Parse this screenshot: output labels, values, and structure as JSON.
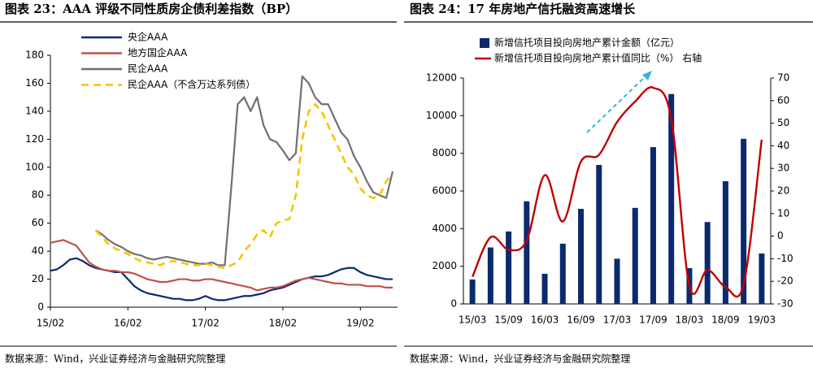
{
  "chart_data": [
    {
      "type": "line",
      "title": "图表 23：AAA 评级不同性质房企债利差指数（BP）",
      "source": "数据来源：Wind，兴业证券经济与金融研究院整理",
      "x": [
        "15/02",
        "15/03",
        "15/04",
        "15/05",
        "15/06",
        "15/07",
        "15/08",
        "15/09",
        "15/10",
        "15/11",
        "15/12",
        "16/01",
        "16/02",
        "16/03",
        "16/04",
        "16/05",
        "16/06",
        "16/07",
        "16/08",
        "16/09",
        "16/10",
        "16/11",
        "16/12",
        "17/01",
        "17/02",
        "17/03",
        "17/04",
        "17/05",
        "17/06",
        "17/07",
        "17/08",
        "17/09",
        "17/10",
        "17/11",
        "17/12",
        "18/01",
        "18/02",
        "18/03",
        "18/04",
        "18/05",
        "18/06",
        "18/07",
        "18/08",
        "18/09",
        "18/10",
        "18/11",
        "18/12",
        "19/01",
        "19/02",
        "19/03",
        "19/04",
        "19/05",
        "19/06",
        "19/07"
      ],
      "xticks": [
        "15/02",
        "16/02",
        "17/02",
        "18/02",
        "19/02"
      ],
      "ylim": [
        0,
        180
      ],
      "yticks": [
        0,
        20,
        40,
        60,
        80,
        100,
        120,
        140,
        160,
        180
      ],
      "legend": "upper left",
      "series": [
        {
          "name": "央企AAA",
          "color": "#0b2a6e",
          "style": "solid",
          "values": [
            26,
            27,
            30,
            34,
            35,
            33,
            30,
            28,
            27,
            26,
            25,
            25,
            20,
            15,
            12,
            10,
            9,
            8,
            7,
            6,
            6,
            5,
            5,
            6,
            8,
            6,
            5,
            5,
            6,
            7,
            8,
            8,
            9,
            10,
            12,
            13,
            14,
            16,
            18,
            20,
            21,
            22,
            22,
            23,
            25,
            27,
            28,
            28,
            25,
            23,
            22,
            21,
            20,
            20
          ]
        },
        {
          "name": "地方国企AAA",
          "color": "#c0504d",
          "style": "solid",
          "values": [
            46,
            47,
            48,
            46,
            44,
            38,
            32,
            29,
            27,
            26,
            26,
            25,
            25,
            24,
            22,
            20,
            19,
            18,
            18,
            19,
            20,
            20,
            19,
            19,
            20,
            20,
            19,
            18,
            17,
            16,
            15,
            14,
            12,
            13,
            14,
            14,
            15,
            17,
            19,
            20,
            21,
            20,
            19,
            18,
            17,
            17,
            16,
            16,
            16,
            15,
            15,
            15,
            14,
            14
          ]
        },
        {
          "name": "民企AAA",
          "color": "#707070",
          "style": "solid",
          "values": [
            null,
            null,
            null,
            null,
            null,
            null,
            null,
            55,
            52,
            48,
            45,
            43,
            40,
            38,
            37,
            35,
            34,
            35,
            36,
            35,
            34,
            33,
            32,
            31,
            31,
            32,
            30,
            30,
            85,
            145,
            150,
            140,
            150,
            130,
            120,
            118,
            112,
            105,
            110,
            165,
            160,
            150,
            145,
            145,
            135,
            125,
            120,
            108,
            100,
            90,
            82,
            80,
            78,
            97
          ]
        },
        {
          "name": "民企AAA（不含万达系列债）",
          "color": "#f5c400",
          "style": "dashed",
          "values": [
            null,
            null,
            null,
            null,
            null,
            null,
            null,
            55,
            50,
            45,
            42,
            40,
            38,
            35,
            33,
            32,
            31,
            30,
            32,
            33,
            32,
            31,
            30,
            30,
            31,
            30,
            29,
            28,
            30,
            32,
            40,
            45,
            52,
            55,
            50,
            60,
            62,
            63,
            80,
            120,
            140,
            145,
            140,
            130,
            120,
            110,
            100,
            95,
            85,
            80,
            78,
            80,
            90,
            95
          ]
        }
      ]
    },
    {
      "type": "combo",
      "title": "图表 24：17 年房地产信托融资高速增长",
      "source": "数据来源：Wind，兴业证券经济与金融研究院整理",
      "categories": [
        "15/03",
        null,
        "15/09",
        null,
        "16/03",
        null,
        "16/09",
        null,
        "17/03",
        null,
        "17/09",
        null,
        "18/03",
        null,
        "18/09",
        null,
        "19/03"
      ],
      "ylim": [
        0,
        12000
      ],
      "yticks": [
        0,
        2000,
        4000,
        6000,
        8000,
        10000,
        12000
      ],
      "y2lim": [
        -30,
        70
      ],
      "y2ticks": [
        -30,
        -20,
        -10,
        0,
        10,
        20,
        30,
        40,
        50,
        60,
        70
      ],
      "legend": "upper left",
      "series": [
        {
          "name": "新增信托项目投向房地产累计金额（亿元）",
          "type": "bar",
          "color": "#0b2a6e",
          "values": [
            1300,
            3000,
            3850,
            5450,
            1600,
            3200,
            5050,
            7380,
            2400,
            5100,
            8330,
            11150,
            1900,
            4350,
            6520,
            8770,
            2680
          ]
        },
        {
          "name": "新增信托项目投向房地产累计值同比（%）  右轴",
          "type": "line",
          "axis": "y2",
          "smooth": true,
          "color": "#c00000",
          "values": [
            -18,
            -0.5,
            -6,
            -2,
            27,
            6.5,
            33,
            36,
            50.5,
            59.6,
            65.7,
            52,
            -22,
            -15,
            -22.5,
            -21.4,
            42.7
          ]
        }
      ]
    }
  ]
}
